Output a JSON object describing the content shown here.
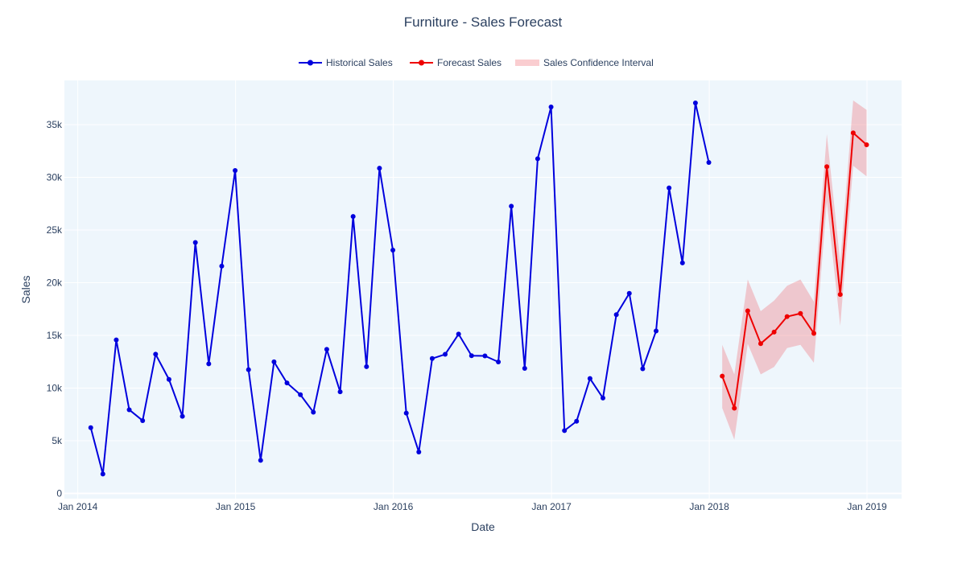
{
  "chart_data": {
    "type": "line",
    "title": "Furniture - Sales Forecast",
    "xlabel": "Date",
    "ylabel": "Sales",
    "ylim": [
      -500,
      39200
    ],
    "xlim": [
      "2013-12-01",
      "2019-03-22"
    ],
    "y_ticks": [
      0,
      5000,
      10000,
      15000,
      20000,
      25000,
      30000,
      35000
    ],
    "y_tick_labels": [
      "0",
      "5k",
      "10k",
      "15k",
      "20k",
      "25k",
      "30k",
      "35k"
    ],
    "x_ticks": [
      "2014-01-01",
      "2015-01-01",
      "2016-01-01",
      "2017-01-01",
      "2018-01-01",
      "2019-01-01"
    ],
    "x_tick_labels": [
      "Jan 2014",
      "Jan 2015",
      "Jan 2016",
      "Jan 2017",
      "Jan 2018",
      "Jan 2019"
    ],
    "legend": [
      "Historical Sales",
      "Forecast Sales",
      "Sales Confidence Interval"
    ],
    "legend_position": "top-center",
    "colors": {
      "historical": "#0000dd",
      "forecast": "#ee0000",
      "confidence": "rgba(238,90,100,0.3)",
      "plot_bg": "#eef6fc",
      "grid": "#ffffff",
      "text": "#2a3f5f"
    },
    "series": [
      {
        "name": "Historical Sales",
        "x": [
          "2014-01-31",
          "2014-02-28",
          "2014-03-31",
          "2014-04-30",
          "2014-05-31",
          "2014-06-30",
          "2014-07-31",
          "2014-08-31",
          "2014-09-30",
          "2014-10-31",
          "2014-11-30",
          "2014-12-31",
          "2015-01-31",
          "2015-02-28",
          "2015-03-31",
          "2015-04-30",
          "2015-05-31",
          "2015-06-30",
          "2015-07-31",
          "2015-08-31",
          "2015-09-30",
          "2015-10-31",
          "2015-11-30",
          "2015-12-31",
          "2016-01-31",
          "2016-02-29",
          "2016-03-31",
          "2016-04-30",
          "2016-05-31",
          "2016-06-30",
          "2016-07-31",
          "2016-08-31",
          "2016-09-30",
          "2016-10-31",
          "2016-11-30",
          "2016-12-31",
          "2017-01-31",
          "2017-02-28",
          "2017-03-31",
          "2017-04-30",
          "2017-05-31",
          "2017-06-30",
          "2017-07-31",
          "2017-08-31",
          "2017-09-30",
          "2017-10-31",
          "2017-11-30",
          "2017-12-31"
        ],
        "values": [
          6240,
          1840,
          14570,
          7940,
          6910,
          13210,
          10820,
          7320,
          23820,
          12300,
          21570,
          30650,
          11740,
          3140,
          12490,
          10480,
          9370,
          7710,
          13670,
          9640,
          26290,
          12030,
          30870,
          23090,
          7620,
          3930,
          12800,
          13200,
          15120,
          13070,
          13050,
          12480,
          27260,
          11870,
          31770,
          36680,
          5960,
          6850,
          10900,
          9050,
          16960,
          18990,
          11830,
          15420,
          29000,
          21880,
          37060,
          31410
        ]
      },
      {
        "name": "Forecast Sales",
        "x": [
          "2018-01-31",
          "2018-02-28",
          "2018-03-31",
          "2018-04-30",
          "2018-05-31",
          "2018-06-30",
          "2018-07-31",
          "2018-08-31",
          "2018-09-30",
          "2018-10-31",
          "2018-11-30",
          "2018-12-31"
        ],
        "values": [
          11130,
          8090,
          17330,
          14220,
          15310,
          16780,
          17080,
          15190,
          31010,
          18880,
          34220,
          33090
        ],
        "upper": [
          14100,
          11300,
          20300,
          17300,
          18300,
          19700,
          20300,
          18200,
          34100,
          21900,
          37300,
          36400
        ],
        "lower": [
          8100,
          5100,
          14200,
          11300,
          12000,
          13800,
          14100,
          12400,
          27700,
          15900,
          31100,
          30100
        ]
      }
    ]
  }
}
